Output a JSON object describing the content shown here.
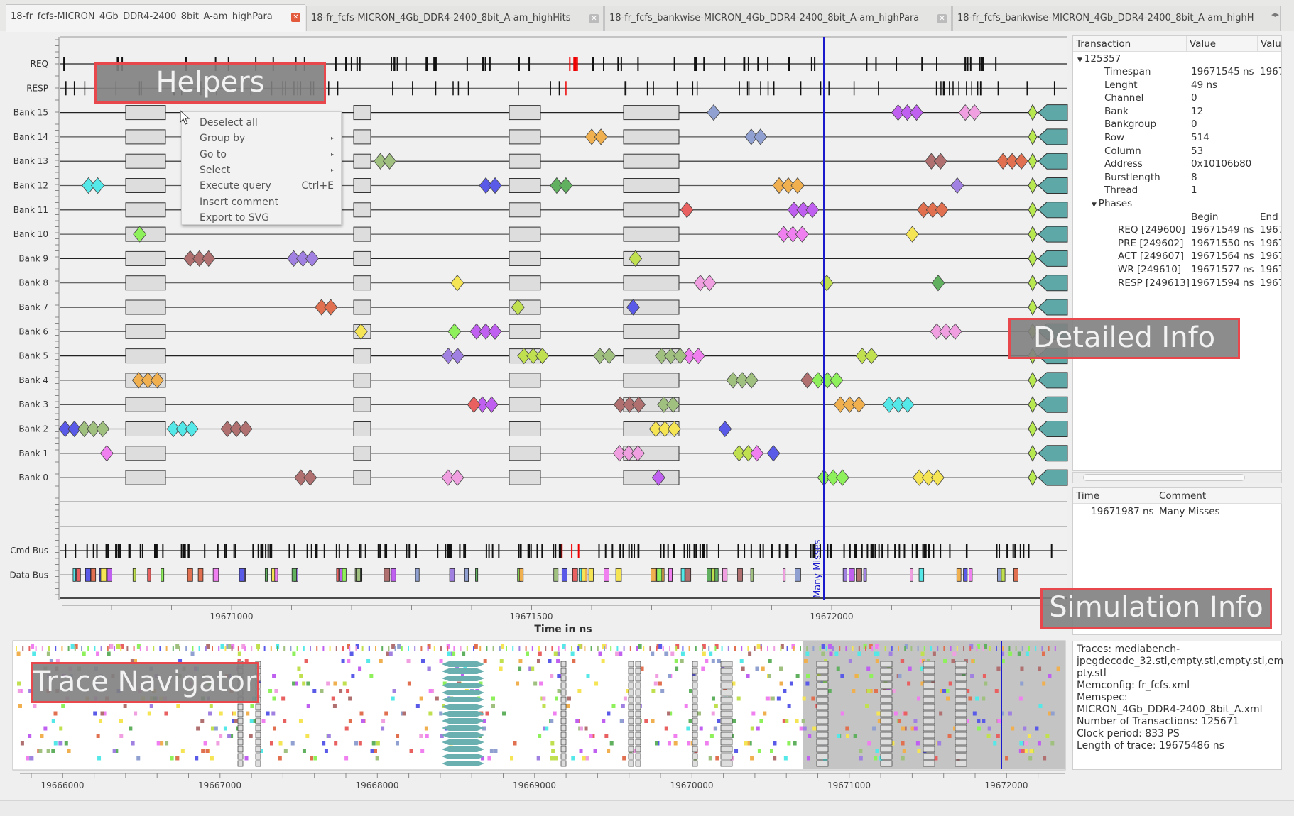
{
  "tabs": [
    {
      "label": "18-fr_fcfs-MICRON_4Gb_DDR4-2400_8bit_A-am_highPara",
      "active": true
    },
    {
      "label": "18-fr_fcfs-MICRON_4Gb_DDR4-2400_8bit_A-am_highHits",
      "active": false
    },
    {
      "label": "18-fr_fcfs_bankwise-MICRON_4Gb_DDR4-2400_8bit_A-am_highPara",
      "active": false
    },
    {
      "label": "18-fr_fcfs_bankwise-MICRON_4Gb_DDR4-2400_8bit_A-am_highH",
      "active": false
    }
  ],
  "trace": {
    "rows": [
      "REQ",
      "RESP",
      "Bank 15",
      "Bank 14",
      "Bank 13",
      "Bank 12",
      "Bank 11",
      "Bank 10",
      "Bank 9",
      "Bank 8",
      "Bank 7",
      "Bank 6",
      "Bank 5",
      "Bank 4",
      "Bank 3",
      "Bank 2",
      "Bank 1",
      "Bank 0",
      "",
      "",
      "Cmd Bus",
      "Data Bus"
    ],
    "axis_ticks": [
      "19671000",
      "19671500",
      "19672000"
    ],
    "axis_label": "Time in ns",
    "comment_marker": "Many Misses"
  },
  "overlays": {
    "helpers": "Helpers",
    "detailed": "Detailed Info",
    "simulation": "Simulation Info",
    "navigator": "Trace Navigator"
  },
  "context_menu": [
    {
      "label": "Deselect all",
      "shortcut": "",
      "submenu": false
    },
    {
      "label": "Group by",
      "shortcut": "",
      "submenu": true
    },
    {
      "label": "Go to",
      "shortcut": "",
      "submenu": true
    },
    {
      "label": "Select",
      "shortcut": "",
      "submenu": true
    },
    {
      "label": "Execute query",
      "shortcut": "Ctrl+E",
      "submenu": false
    },
    {
      "label": "Insert comment",
      "shortcut": "",
      "submenu": false
    },
    {
      "label": "Export to SVG",
      "shortcut": "",
      "submenu": false
    }
  ],
  "transaction": {
    "headers": [
      "Transaction",
      "Value",
      "Valu"
    ],
    "id": "125357",
    "fields": [
      {
        "k": "Timespan",
        "v": "19671545 ns",
        "v2": "1967"
      },
      {
        "k": "Lenght",
        "v": "49 ns",
        "v2": ""
      },
      {
        "k": "Channel",
        "v": "0",
        "v2": ""
      },
      {
        "k": "Bank",
        "v": "12",
        "v2": ""
      },
      {
        "k": "Bankgroup",
        "v": "0",
        "v2": ""
      },
      {
        "k": "Row",
        "v": "514",
        "v2": ""
      },
      {
        "k": "Column",
        "v": "53",
        "v2": ""
      },
      {
        "k": "Address",
        "v": "0x10106b80",
        "v2": ""
      },
      {
        "k": "Burstlength",
        "v": "8",
        "v2": ""
      },
      {
        "k": "Thread",
        "v": "1",
        "v2": ""
      }
    ],
    "phases_label": "Phases",
    "phase_headers": [
      "Begin",
      "End"
    ],
    "phases": [
      {
        "k": "REQ [249600]",
        "v": "19671549 ns",
        "v2": "1967"
      },
      {
        "k": "PRE [249602]",
        "v": "19671550 ns",
        "v2": "1967"
      },
      {
        "k": "ACT [249607]",
        "v": "19671564 ns",
        "v2": "1967"
      },
      {
        "k": "WR [249610]",
        "v": "19671577 ns",
        "v2": "1967"
      },
      {
        "k": "RESP [249613]",
        "v": "19671594 ns",
        "v2": "1967"
      }
    ]
  },
  "comments": {
    "headers": [
      "Time",
      "Comment"
    ],
    "items": [
      {
        "time": "19671987 ns",
        "text": "Many Misses"
      }
    ]
  },
  "sim_info": [
    "Traces: mediabench-",
    "jpegdecode_32.stl,empty.stl,empty.stl,em",
    "pty.stl",
    "Memconfig: fr_fcfs.xml",
    "Memspec:",
    "MICRON_4Gb_DDR4-2400_8bit_A.xml",
    "Number of Transactions: 125671",
    "Clock period: 833 PS",
    "Length of trace: 19675486 ns"
  ],
  "navigator": {
    "axis_ticks": [
      "19666000",
      "19667000",
      "19668000",
      "19669000",
      "19670000",
      "19671000",
      "19672000"
    ]
  },
  "colors": {
    "cursor": "#1a1acc",
    "highlight": "#e8474c",
    "bank_end": "#5fa8a8"
  }
}
